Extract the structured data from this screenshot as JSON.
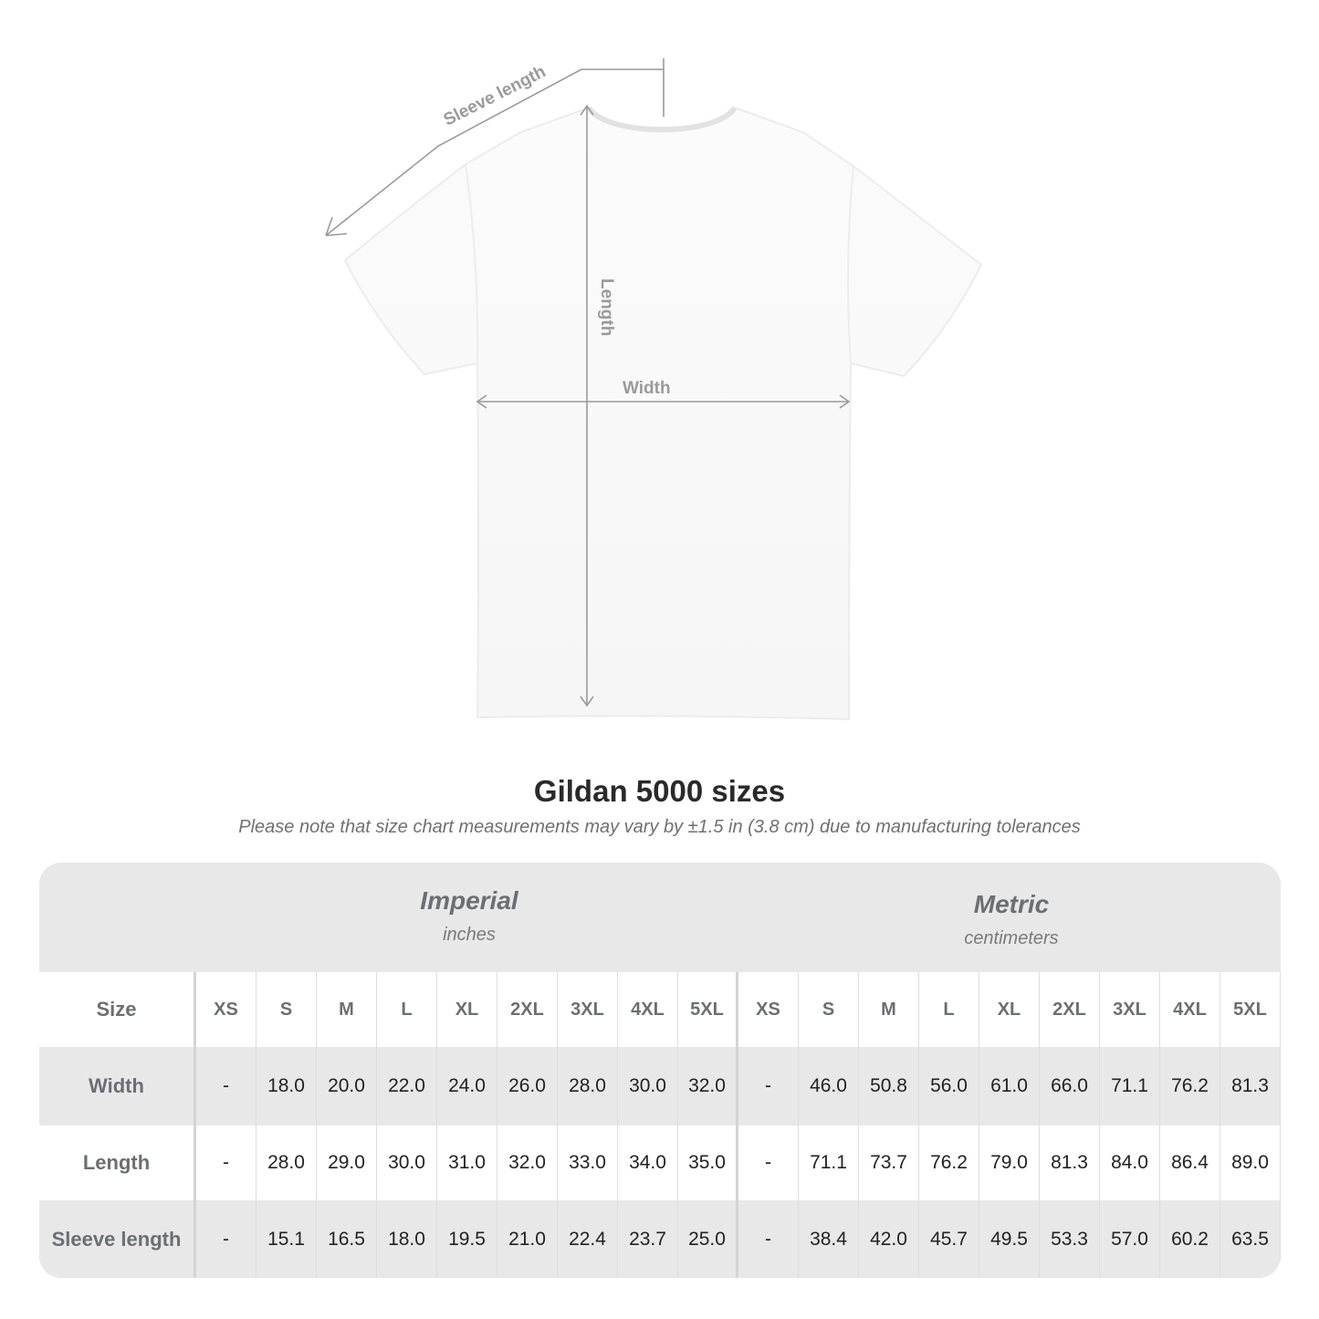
{
  "diagram": {
    "labels": {
      "sleeve": "Sleeve length",
      "length": "Length",
      "width": "Width"
    }
  },
  "title": "Gildan 5000 sizes",
  "subtitle": "Please note that size chart measurements may vary by ±1.5 in (3.8 cm) due to manufacturing tolerances",
  "imperial": {
    "name": "Imperial",
    "unit": "inches"
  },
  "metric": {
    "name": "Metric",
    "unit": "centimeters"
  },
  "table": {
    "size_label": "Size",
    "sizes": [
      "XS",
      "S",
      "M",
      "L",
      "XL",
      "2XL",
      "3XL",
      "4XL",
      "5XL"
    ],
    "rows": [
      {
        "label": "Width",
        "imperial": [
          "-",
          "18.0",
          "20.0",
          "22.0",
          "24.0",
          "26.0",
          "28.0",
          "30.0",
          "32.0"
        ],
        "metric": [
          "-",
          "46.0",
          "50.8",
          "56.0",
          "61.0",
          "66.0",
          "71.1",
          "76.2",
          "81.3"
        ]
      },
      {
        "label": "Length",
        "imperial": [
          "-",
          "28.0",
          "29.0",
          "30.0",
          "31.0",
          "32.0",
          "33.0",
          "34.0",
          "35.0"
        ],
        "metric": [
          "-",
          "71.1",
          "73.7",
          "76.2",
          "79.0",
          "81.3",
          "84.0",
          "86.4",
          "89.0"
        ]
      },
      {
        "label": "Sleeve length",
        "imperial": [
          "-",
          "15.1",
          "16.5",
          "18.0",
          "19.5",
          "21.0",
          "22.4",
          "23.7",
          "25.0"
        ],
        "metric": [
          "-",
          "38.4",
          "42.0",
          "45.7",
          "49.5",
          "53.3",
          "57.0",
          "60.2",
          "63.5"
        ]
      }
    ]
  },
  "colors": {
    "measure_line": "#9a9a9a",
    "header_text": "#6b6f72",
    "band": "#e8e8e8"
  }
}
